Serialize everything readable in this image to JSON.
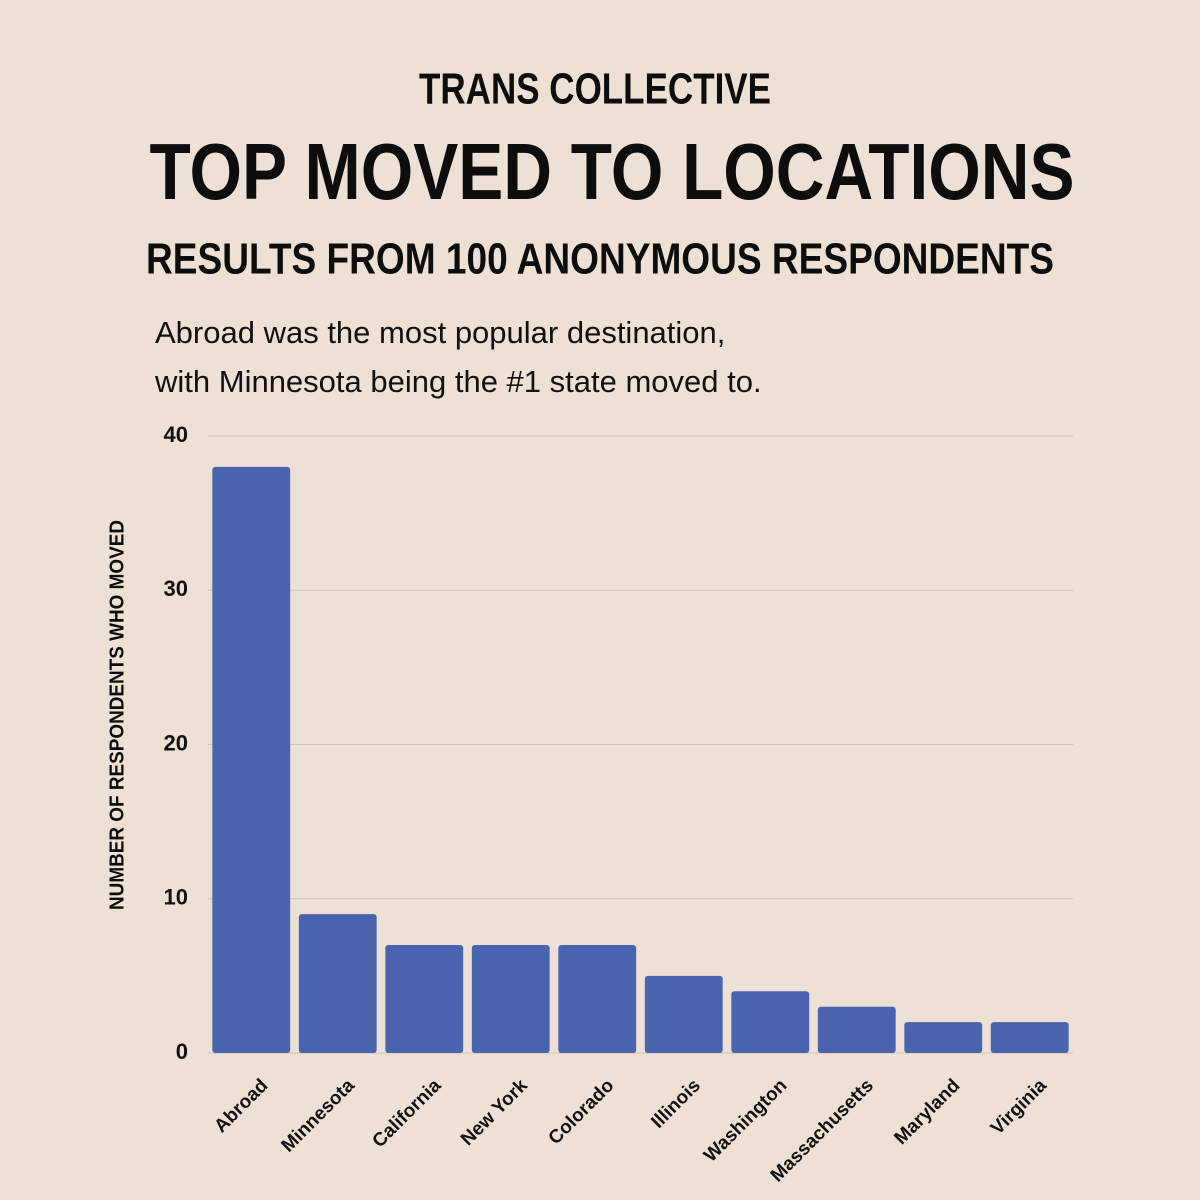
{
  "chart_data": {
    "type": "bar",
    "supertitle": "TRANS COLLECTIVE",
    "title": "TOP MOVED TO LOCATIONS",
    "subtitle": "RESULTS FROM 100 ANONYMOUS RESPONDENTS",
    "annotation": [
      "Abroad was the most popular destination,",
      "with Minnesota being the #1 state moved to."
    ],
    "ylabel": "NUMBER OF RESPONDENTS WHO MOVED",
    "categories": [
      "Abroad",
      "Minnesota",
      "California",
      "New York",
      "Colorado",
      "Illinois",
      "Washington",
      "Massachusetts",
      "Maryland",
      "Virginia"
    ],
    "values": [
      38,
      9,
      7,
      7,
      7,
      5,
      4,
      3,
      2,
      2
    ],
    "color": "#4a63ae",
    "ylim": [
      0,
      40
    ],
    "yticks": [
      0,
      10,
      20,
      30,
      40
    ],
    "grid": true
  }
}
